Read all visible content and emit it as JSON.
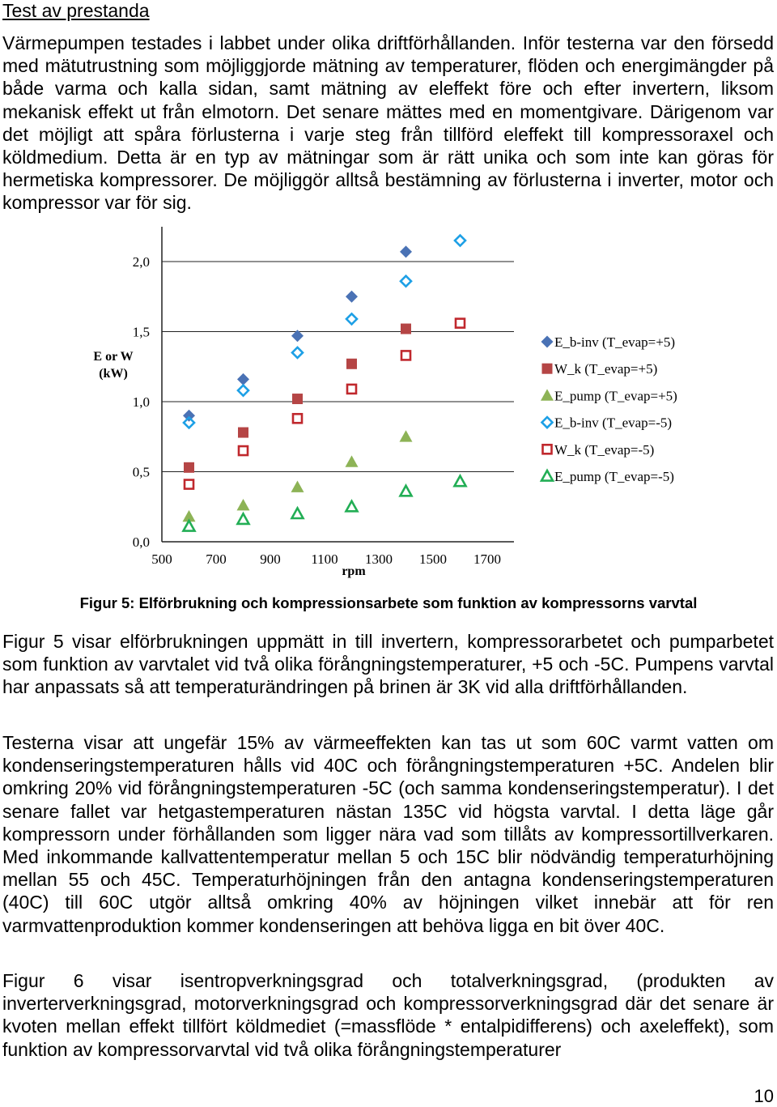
{
  "heading": "Test av prestanda",
  "paragraphs": [
    "Värmepumpen testades i labbet under olika driftförhållanden. Inför testerna var den försedd med mätutrustning som möjliggjorde mätning av temperaturer, flöden och energimängder på både varma och kalla sidan, samt mätning av eleffekt före och efter invertern, liksom mekanisk effekt ut från elmotorn. Det senare mättes med en momentgivare. Därigenom var det möjligt att spåra förlusterna i varje steg från tillförd eleffekt till kompressoraxel och köldmedium. Detta är en typ av mätningar som är rätt unika och som inte kan göras för hermetiska kompressorer. De möjliggör alltså bestämning av förlusterna i inverter, motor och kompressor var för sig.",
    "Figur 5 visar elförbrukningen uppmätt in till invertern, kompressorarbetet och pumparbetet som funktion av varvtalet vid två olika förångningstemperaturer, +5 och -5C. Pumpens varvtal har anpassats så att temperaturändringen på brinen är 3K vid alla driftförhållanden.",
    "Testerna visar att ungefär 15% av värmeeffekten kan tas ut som 60C varmt vatten om kondenseringstemperaturen hålls vid 40C och förångningstemperaturen +5C. Andelen blir omkring 20% vid förångningstemperaturen -5C (och samma kondenseringstemperatur). I det senare fallet var hetgastemperaturen nästan 135C vid högsta varvtal. I detta läge går kompressorn under förhållanden som ligger nära vad som tillåts av kompressortillverkaren. Med inkommande kallvattentemperatur mellan 5 och 15C blir nödvändig temperaturhöjning mellan 55 och 45C. Temperaturhöjningen från den antagna kondenseringstemperaturen (40C) till 60C utgör alltså omkring 40% av höjningen vilket innebär att för ren varmvattenproduktion kommer kondenseringen att behöva ligga en bit över 40C.",
    "Figur 6 visar isentropverkningsgrad och totalverkningsgrad, (produkten av inverterverkningsgrad, motorverkningsgrad och kompressorverkningsgrad där det senare är kvoten mellan effekt tillfört köldmediet (=massflöde * entalpidifferens) och axeleffekt), som funktion av kompressorvarvtal vid två olika förångningstemperaturer"
  ],
  "caption": "Figur 5: Elförbrukning och kompressionsarbete som funktion av kompressorns varvtal",
  "page_number": "10",
  "chart_data": {
    "type": "scatter",
    "title": "",
    "ylabel_lines": [
      "E or W",
      "(kW)"
    ],
    "xlabel": "rpm",
    "xlim": [
      500,
      1800
    ],
    "ylim": [
      0,
      2.2
    ],
    "x_ticks": [
      500,
      700,
      900,
      1100,
      1300,
      1500,
      1700
    ],
    "y_ticks": [
      0,
      0.5,
      1.0,
      1.5,
      2.0
    ],
    "y_tick_labels": [
      "0,0",
      "0,5",
      "1,0",
      "1,5",
      "2,0"
    ],
    "grid": "horizontal",
    "legend_position": "right",
    "series": [
      {
        "name": "E_b-inv (T_evap=+5)",
        "marker": "diamond",
        "filled": true,
        "color": "#4a72b5",
        "points": [
          [
            600,
            0.9
          ],
          [
            800,
            1.16
          ],
          [
            1000,
            1.47
          ],
          [
            1200,
            1.75
          ],
          [
            1400,
            2.07
          ]
        ]
      },
      {
        "name": "W_k (T_evap=+5)",
        "marker": "square",
        "filled": true,
        "color": "#b54545",
        "points": [
          [
            600,
            0.53
          ],
          [
            800,
            0.78
          ],
          [
            1000,
            1.02
          ],
          [
            1200,
            1.27
          ],
          [
            1400,
            1.52
          ]
        ]
      },
      {
        "name": "E_pump (T_evap=+5)",
        "marker": "triangle",
        "filled": true,
        "color": "#8db356",
        "points": [
          [
            600,
            0.18
          ],
          [
            800,
            0.26
          ],
          [
            1000,
            0.39
          ],
          [
            1200,
            0.57
          ],
          [
            1400,
            0.75
          ]
        ]
      },
      {
        "name": "E_b-inv (T_evap=-5)",
        "marker": "diamond",
        "filled": false,
        "color": "#1ea0e6",
        "points": [
          [
            600,
            0.85
          ],
          [
            800,
            1.08
          ],
          [
            1000,
            1.35
          ],
          [
            1200,
            1.59
          ],
          [
            1400,
            1.86
          ],
          [
            1600,
            2.15
          ]
        ]
      },
      {
        "name": "W_k (T_evap=-5)",
        "marker": "square",
        "filled": false,
        "color": "#c0282d",
        "points": [
          [
            600,
            0.41
          ],
          [
            800,
            0.65
          ],
          [
            1000,
            0.88
          ],
          [
            1200,
            1.09
          ],
          [
            1400,
            1.33
          ],
          [
            1600,
            1.56
          ]
        ]
      },
      {
        "name": "E_pump (T_evap=-5)",
        "marker": "triangle",
        "filled": false,
        "color": "#22ae55",
        "points": [
          [
            600,
            0.11
          ],
          [
            800,
            0.16
          ],
          [
            1000,
            0.2
          ],
          [
            1200,
            0.25
          ],
          [
            1400,
            0.36
          ],
          [
            1600,
            0.43
          ]
        ]
      }
    ]
  }
}
